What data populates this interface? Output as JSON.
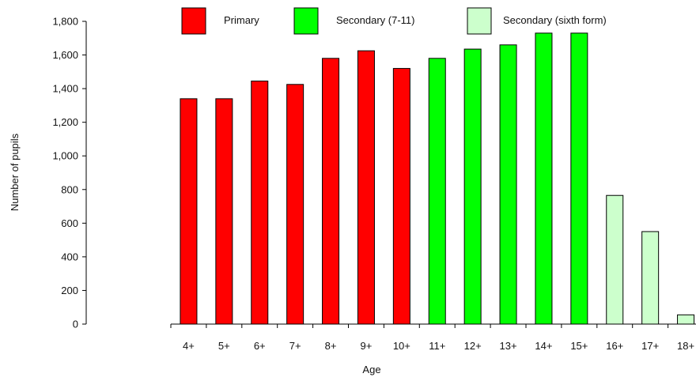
{
  "chart_data": {
    "type": "bar",
    "xlabel": "Age",
    "ylabel": "Number of pupils",
    "ylim": [
      0,
      1800
    ],
    "y_ticks": [
      "0",
      "200",
      "400",
      "600",
      "800",
      "1,000",
      "1,200",
      "1,400",
      "1,600",
      "1,800"
    ],
    "categories": [
      "4+",
      "5+",
      "6+",
      "7+",
      "8+",
      "9+",
      "10+",
      "11+",
      "12+",
      "13+",
      "14+",
      "15+",
      "16+",
      "17+",
      "18+"
    ],
    "values": [
      1340,
      1340,
      1445,
      1425,
      1580,
      1625,
      1520,
      1580,
      1635,
      1660,
      1730,
      1730,
      765,
      550,
      55
    ],
    "bar_group": [
      0,
      0,
      0,
      0,
      0,
      0,
      0,
      1,
      1,
      1,
      1,
      1,
      2,
      2,
      2
    ],
    "legend": {
      "placement": "top",
      "items": [
        {
          "label": "Primary",
          "color": "#ff0000"
        },
        {
          "label": "Secondary (7-11)",
          "color": "#00ff00"
        },
        {
          "label": "Secondary (sixth form)",
          "color": "#ccffcc"
        }
      ]
    },
    "grid": false
  }
}
